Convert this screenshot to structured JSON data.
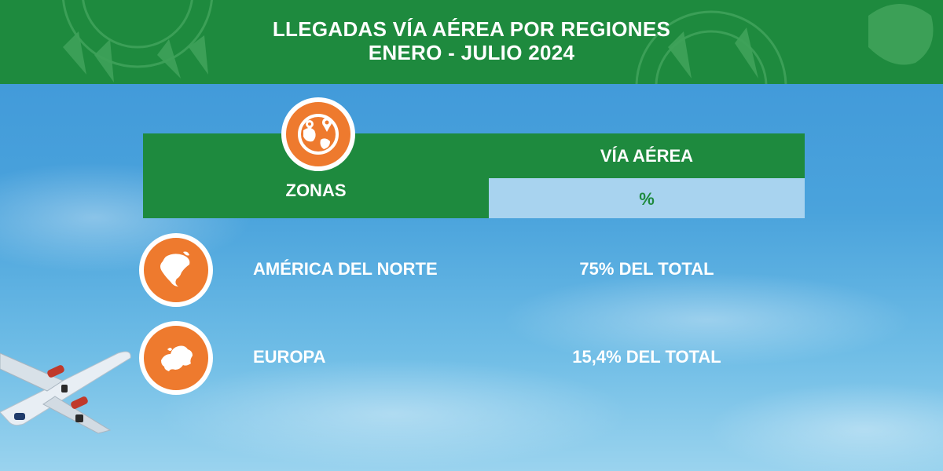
{
  "header": {
    "title_line1": "LLEGADAS VÍA AÉREA POR REGIONES",
    "title_line2": "ENERO - JULIO 2024"
  },
  "table": {
    "zones_label": "ZONAS",
    "via_label": "VÍA AÉREA",
    "percent_label": "%",
    "icon": "world-map-pin-icon",
    "rows": [
      {
        "region": "AMÉRICA DEL NORTE",
        "value": "75% DEL TOTAL",
        "icon": "north-america-icon"
      },
      {
        "region": "EUROPA",
        "value": "15,4% DEL TOTAL",
        "icon": "europe-icon"
      }
    ]
  },
  "colors": {
    "green": "#1e8a3e",
    "orange": "#ee7a2e",
    "light_blue": "#a8d3ef",
    "sky": "#4aa3dc"
  }
}
